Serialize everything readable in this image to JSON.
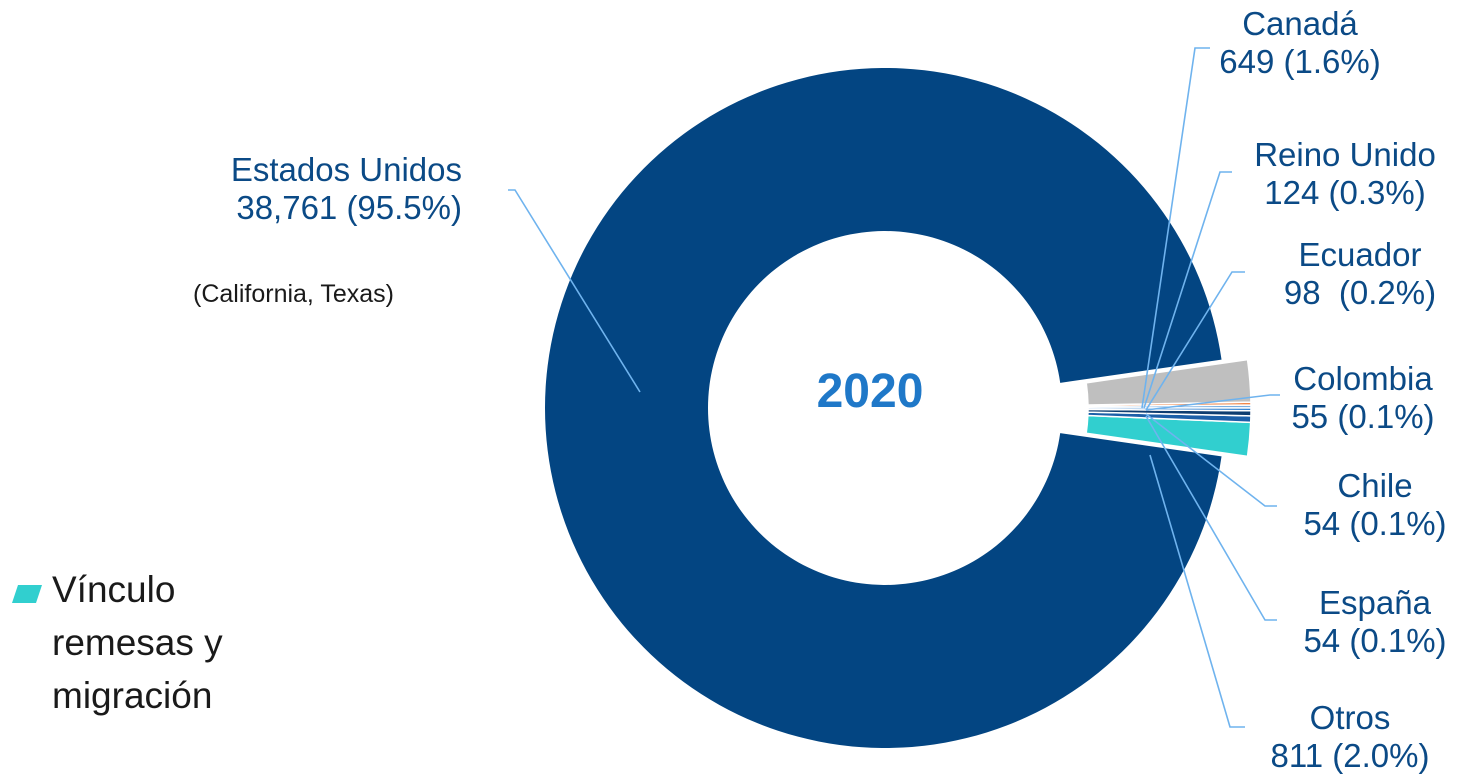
{
  "chart_data": {
    "type": "pie",
    "center_label": "2020",
    "slices": [
      {
        "name": "Estados Unidos",
        "label": "Estados Unidos",
        "value_label": " 38,761 (95.5%)",
        "value": 38761,
        "percent": 95.5,
        "color": "#034582"
      },
      {
        "name": "Canadá",
        "label": "Canadá",
        "value_label": "649 (1.6%)",
        "value": 649,
        "percent": 1.6,
        "color": "#31cfcf"
      },
      {
        "name": "Reino Unido",
        "label": "Reino Unido",
        "value_label": "124 (0.3%)",
        "value": 124,
        "percent": 0.3,
        "color": "#1c5fa8"
      },
      {
        "name": "Ecuador",
        "label": "Ecuador",
        "value_label": "98  (0.2%)",
        "value": 98,
        "percent": 0.2,
        "color": "#0e3d70"
      },
      {
        "name": "Colombia",
        "label": "Colombia",
        "value_label": "55 (0.1%)",
        "value": 55,
        "percent": 0.1,
        "color": "#2f7fd0"
      },
      {
        "name": "Chile",
        "label": "Chile",
        "value_label": "54 (0.1%)",
        "value": 54,
        "percent": 0.1,
        "color": "#7aaee0"
      },
      {
        "name": "España",
        "label": "España",
        "value_label": "54 (0.1%)",
        "value": 54,
        "percent": 0.1,
        "color": "#f0874a"
      },
      {
        "name": "Otros",
        "label": "Otros",
        "value_label": "811 (2.0%)",
        "value": 811,
        "percent": 2.0,
        "color": "#bfbfbf"
      }
    ],
    "annotation": "(California, Texas)",
    "legend": [
      {
        "label": "Vínculo remesas y migración",
        "color": "#31cfcf"
      }
    ],
    "legend_position": "bottom-left"
  }
}
